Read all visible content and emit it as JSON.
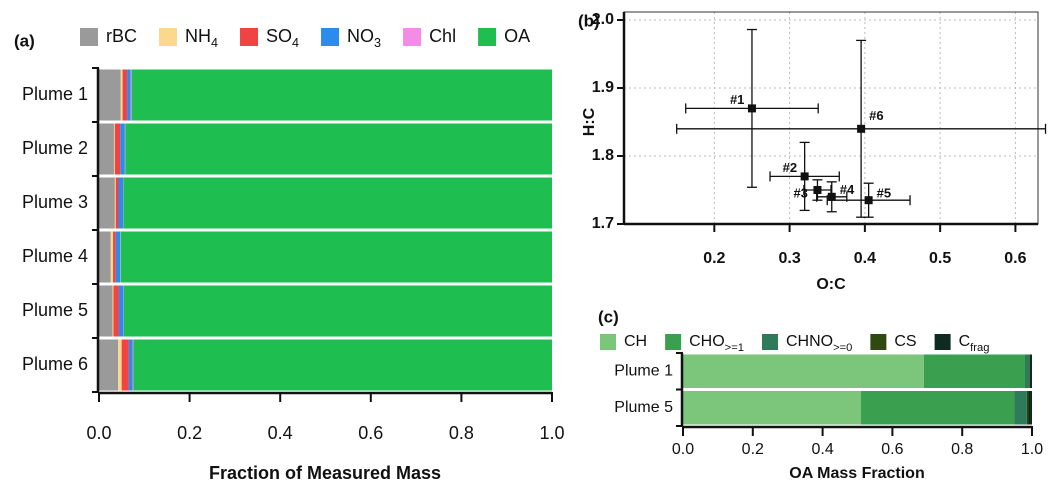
{
  "chart_data": [
    {
      "type": "bar",
      "orientation": "horizontal",
      "stacked": true,
      "panel_label": "(a)",
      "x_label": "Fraction of Measured Mass",
      "categories": [
        "Plume 1",
        "Plume 2",
        "Plume 3",
        "Plume 4",
        "Plume 5",
        "Plume 6"
      ],
      "series": [
        {
          "name": "rBC",
          "color": "#9a9a9a",
          "values": [
            0.048,
            0.033,
            0.035,
            0.026,
            0.03,
            0.042
          ]
        },
        {
          "name": "NH",
          "sub": "4",
          "color": "#fbd88c",
          "values": [
            0.004,
            0.002,
            0.002,
            0.005,
            0.002,
            0.008
          ]
        },
        {
          "name": "SO",
          "sub": "4",
          "color": "#f04444",
          "values": [
            0.01,
            0.012,
            0.006,
            0.006,
            0.012,
            0.016
          ]
        },
        {
          "name": "NO",
          "sub": "3",
          "color": "#2b8cee",
          "values": [
            0.008,
            0.01,
            0.01,
            0.01,
            0.01,
            0.008
          ]
        },
        {
          "name": "Chl",
          "color": "#f28ce8",
          "values": [
            0.002,
            0.001,
            0.001,
            0.001,
            0.001,
            0.002
          ]
        },
        {
          "name": "OA",
          "color": "#1fbe50",
          "values": [
            0.928,
            0.942,
            0.946,
            0.952,
            0.945,
            0.924
          ]
        }
      ],
      "xlim": [
        0,
        1
      ],
      "xticks": [
        {
          "value": 0,
          "label": "0.0"
        },
        0.2,
        0.4,
        0.6,
        0.8,
        {
          "value": 1,
          "label": "1.0"
        }
      ]
    },
    {
      "type": "scatter",
      "panel_label": "(b)",
      "x_label": "O:C",
      "y_label": "H:C",
      "point_labels": [
        "#1",
        "#2",
        "#3",
        "#4",
        "#5",
        "#6"
      ],
      "x": [
        0.25,
        0.32,
        0.337,
        0.356,
        0.405,
        0.395
      ],
      "values": [
        1.87,
        1.77,
        1.75,
        1.74,
        1.735,
        1.84
      ],
      "xerr": [
        0.088,
        0.046,
        0.018,
        0.02,
        0.055,
        0.245
      ],
      "yerr": [
        0.116,
        0.05,
        0.015,
        0.022,
        0.025,
        0.13
      ],
      "color": "#111111",
      "xlim": [
        0.08,
        0.63
      ],
      "ylim": [
        1.7,
        2.0
      ],
      "xticks": [
        0.2,
        0.3,
        0.4,
        0.5,
        0.6
      ],
      "yticks": [
        1.7,
        1.8,
        1.9,
        {
          "value": 2,
          "label": "2.0"
        }
      ],
      "grid": true
    },
    {
      "type": "bar",
      "orientation": "horizontal",
      "stacked": true,
      "panel_label": "(c)",
      "x_label": "OA Mass Fraction",
      "categories": [
        "Plume 1",
        "Plume 5"
      ],
      "series": [
        {
          "name": "CH",
          "color": "#7cc67b",
          "values": [
            0.69,
            0.51
          ]
        },
        {
          "name": "CHO",
          "sub": ">=1",
          "color": "#3aa04f",
          "values": [
            0.29,
            0.44
          ]
        },
        {
          "name": "CHNO",
          "sub": ">=0",
          "color": "#2e7a5a",
          "values": [
            0.012,
            0.035
          ]
        },
        {
          "name": "CS",
          "color": "#2e4a10",
          "values": [
            0.002,
            0.005
          ]
        },
        {
          "name": "C",
          "sub": "frag",
          "color": "#0f2a20",
          "values": [
            0.006,
            0.01
          ]
        }
      ],
      "xlim": [
        0,
        1
      ],
      "xticks": [
        {
          "value": 0,
          "label": "0.0"
        },
        0.2,
        0.4,
        0.6,
        0.8,
        {
          "value": 1,
          "label": "1.0"
        }
      ]
    }
  ]
}
